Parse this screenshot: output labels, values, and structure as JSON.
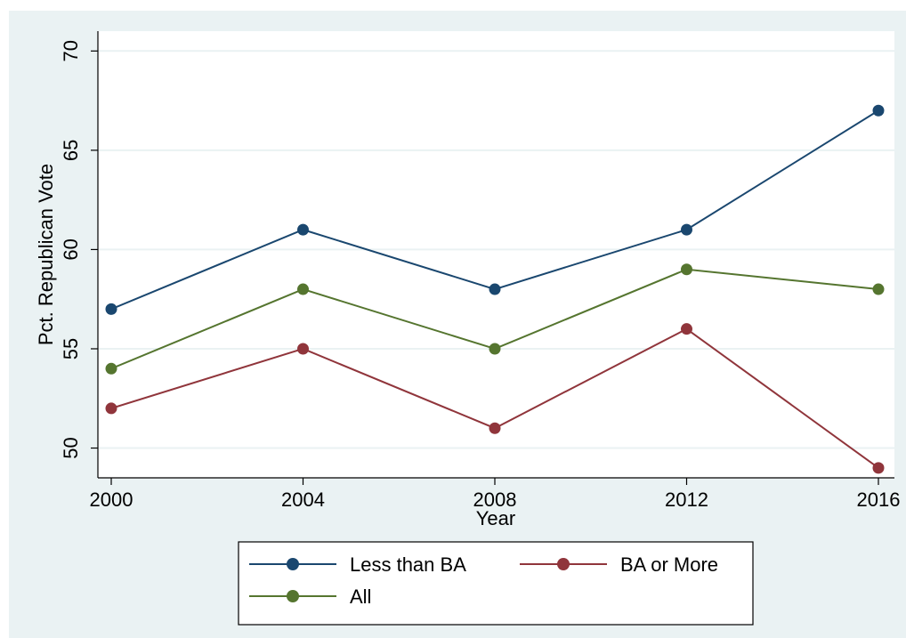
{
  "chart_data": {
    "type": "line",
    "title": "",
    "xlabel": "Year",
    "ylabel": "Pct. Republican Vote",
    "x": [
      2000,
      2004,
      2008,
      2012,
      2016
    ],
    "xticks": [
      "2000",
      "2004",
      "2008",
      "2012",
      "2016"
    ],
    "yticks": [
      "50",
      "55",
      "60",
      "65",
      "70"
    ],
    "xlim": [
      2000,
      2016
    ],
    "ylim": [
      48.5,
      71
    ],
    "grid": "horizontal",
    "legend_position": "bottom",
    "background_color": "#eaf2f3",
    "plot_background_color": "#ffffff",
    "series": [
      {
        "name": "Less than BA",
        "color": "#1a476f",
        "values": [
          57,
          61,
          58,
          61,
          67
        ]
      },
      {
        "name": "BA or More",
        "color": "#90353b",
        "values": [
          52,
          55,
          51,
          56,
          49
        ]
      },
      {
        "name": "All",
        "color": "#55752f",
        "values": [
          54,
          58,
          55,
          59,
          58
        ]
      }
    ]
  }
}
